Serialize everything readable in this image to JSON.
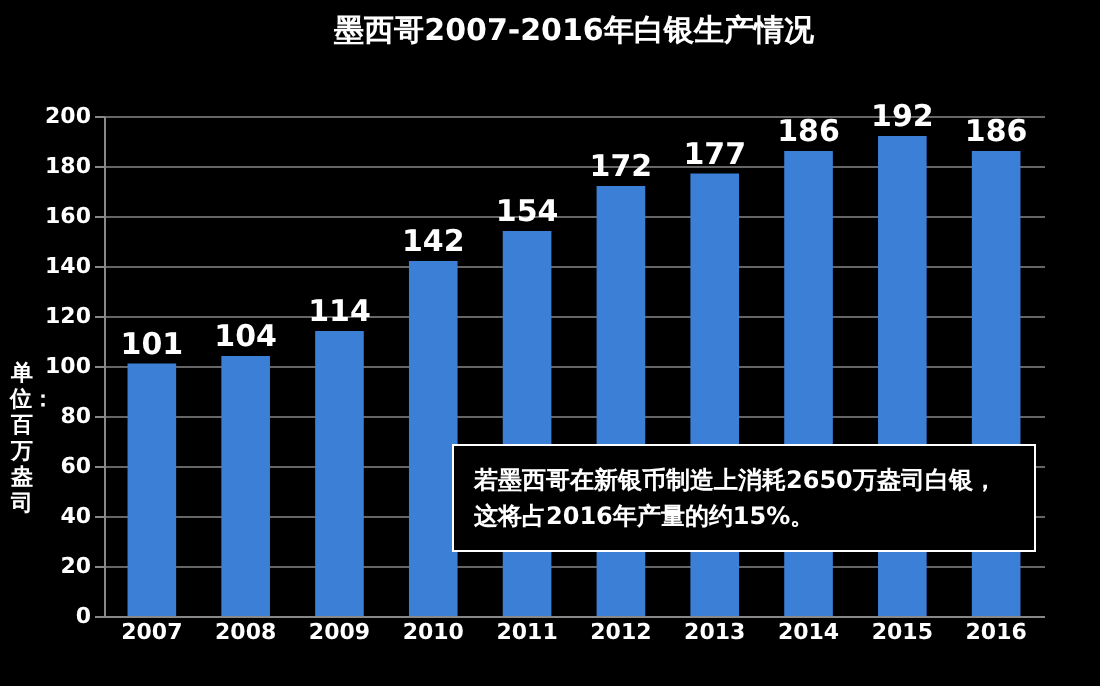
{
  "chart_data": {
    "type": "bar",
    "title": "墨西哥2007-2016年白银生产情况",
    "ylabel": "单位：百万盎司",
    "categories": [
      "2007",
      "2008",
      "2009",
      "2010",
      "2011",
      "2012",
      "2013",
      "2014",
      "2015",
      "2016"
    ],
    "values": [
      101,
      104,
      114,
      142,
      154,
      172,
      177,
      186,
      192,
      186
    ],
    "color": "#3b7fd6",
    "ylim": [
      0,
      200
    ],
    "yticks": [
      0,
      20,
      40,
      60,
      80,
      100,
      120,
      140,
      160,
      180,
      200
    ],
    "grid": "y",
    "data_labels": true,
    "annotations": [
      "若墨西哥在新银币制造上消耗2650万盎司白银，这将占2016年产量的约15%。"
    ]
  }
}
